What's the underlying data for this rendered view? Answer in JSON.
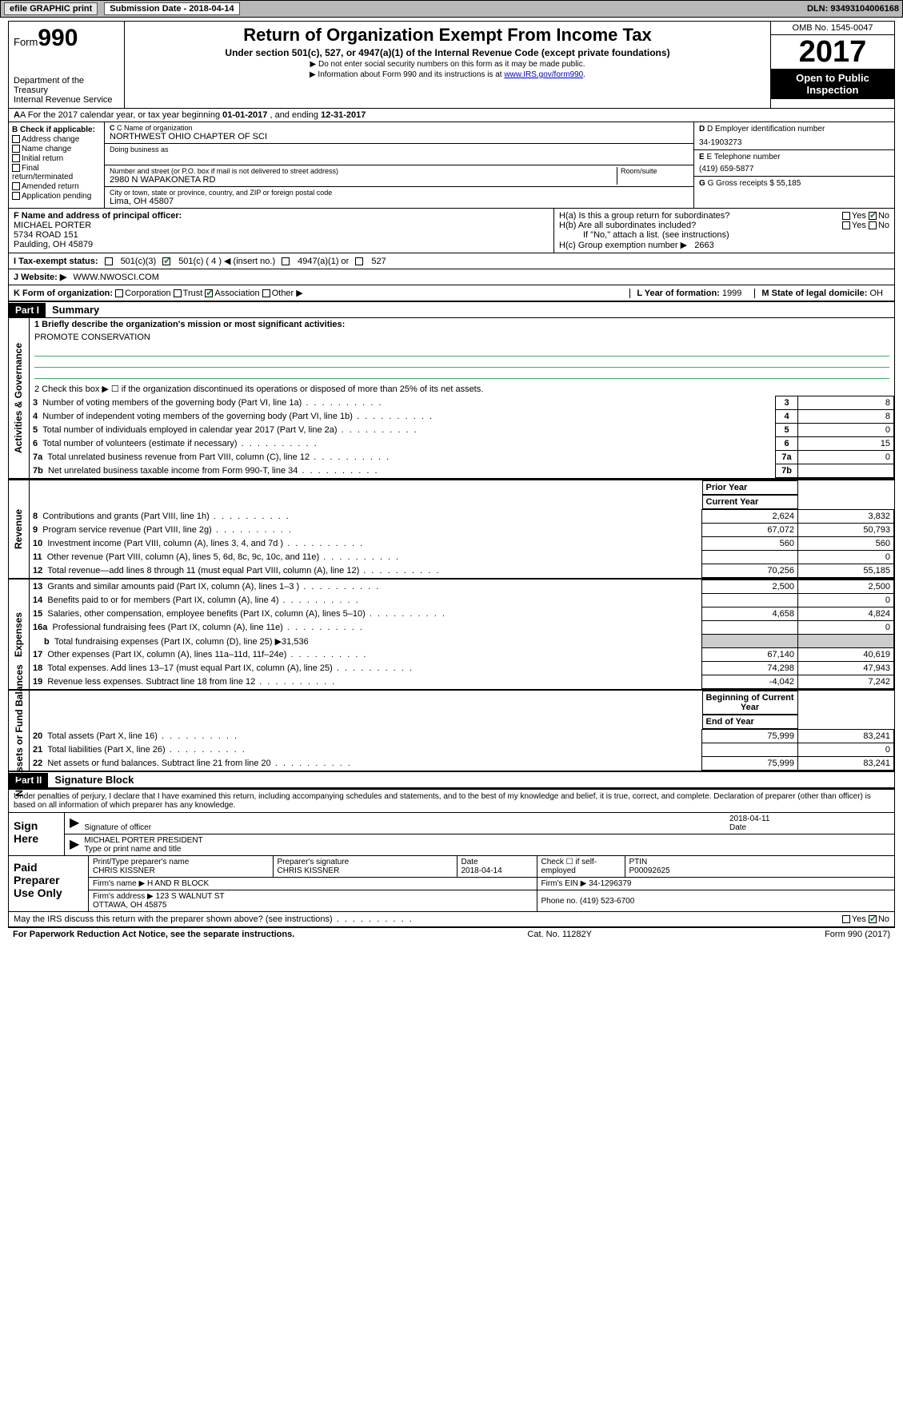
{
  "topbar": {
    "efile": "efile GRAPHIC print",
    "submission": "Submission Date - 2018-04-14",
    "dln": "DLN: 93493104006168"
  },
  "header": {
    "form_word": "Form",
    "form_num": "990",
    "dept": "Department of the Treasury\nInternal Revenue Service",
    "title": "Return of Organization Exempt From Income Tax",
    "subtitle": "Under section 501(c), 527, or 4947(a)(1) of the Internal Revenue Code (except private foundations)",
    "note1": "▶ Do not enter social security numbers on this form as it may be made public.",
    "note2_pre": "▶ Information about Form 990 and its instructions is at ",
    "note2_link": "www.IRS.gov/form990",
    "omb": "OMB No. 1545-0047",
    "year": "2017",
    "otp": "Open to Public Inspection"
  },
  "lineA": {
    "text_pre": "A For the 2017 calendar year, or tax year beginning ",
    "begin": "01-01-2017",
    "mid": " , and ending ",
    "end": "12-31-2017"
  },
  "boxB": {
    "label": "B Check if applicable:",
    "items": [
      "Address change",
      "Name change",
      "Initial return",
      "Final return/terminated",
      "Amended return",
      "Application pending"
    ]
  },
  "boxC": {
    "name_lbl": "C Name of organization",
    "name": "NORTHWEST OHIO CHAPTER OF SCI",
    "dba_lbl": "Doing business as",
    "street_lbl": "Number and street (or P.O. box if mail is not delivered to street address)",
    "room_lbl": "Room/suite",
    "street": "2980 N WAPAKONETA RD",
    "city_lbl": "City or town, state or province, country, and ZIP or foreign postal code",
    "city": "Lima, OH  45807"
  },
  "boxD": {
    "lbl": "D Employer identification number",
    "val": "34-1903273"
  },
  "boxE": {
    "lbl": "E Telephone number",
    "val": "(419) 659-5877"
  },
  "boxG": {
    "lbl": "G Gross receipts $",
    "val": "55,185"
  },
  "boxF": {
    "lbl": "F  Name and address of principal officer:",
    "name": "MICHAEL PORTER",
    "addr1": "5734 ROAD 151",
    "addr2": "Paulding, OH  45879"
  },
  "boxH": {
    "a": "H(a)  Is this a group return for subordinates?",
    "b": "H(b)  Are all subordinates included?",
    "b_note": "If \"No,\" attach a list. (see instructions)",
    "c": "H(c)  Group exemption number ▶",
    "c_val": "2663"
  },
  "lineI": {
    "lbl": "I    Tax-exempt status:",
    "opts": [
      "501(c)(3)",
      "501(c) ( 4 ) ◀ (insert no.)",
      "4947(a)(1) or",
      "527"
    ]
  },
  "lineJ": {
    "lbl": "J    Website: ▶",
    "val": "WWW.NWOSCI.COM"
  },
  "lineK": {
    "lbl": "K Form of organization:",
    "opts": [
      "Corporation",
      "Trust",
      "Association",
      "Other ▶"
    ]
  },
  "lineL": {
    "lbl": "L Year of formation:",
    "val": "1999"
  },
  "lineM": {
    "lbl": "M State of legal domicile:",
    "val": "OH"
  },
  "partI": {
    "tag": "Part I",
    "title": "Summary"
  },
  "gov": {
    "vlabel": "Activities & Governance",
    "l1": "1   Briefly describe the organization's mission or most significant activities:",
    "mission": "PROMOTE CONSERVATION",
    "l2": "2   Check this box ▶ ☐  if the organization discontinued its operations or disposed of more than 25% of its net assets.",
    "rows": [
      {
        "n": "3",
        "d": "Number of voting members of the governing body (Part VI, line 1a)",
        "v": "8"
      },
      {
        "n": "4",
        "d": "Number of independent voting members of the governing body (Part VI, line 1b)",
        "v": "8"
      },
      {
        "n": "5",
        "d": "Total number of individuals employed in calendar year 2017 (Part V, line 2a)",
        "v": "0"
      },
      {
        "n": "6",
        "d": "Total number of volunteers (estimate if necessary)",
        "v": "15"
      },
      {
        "n": "7a",
        "d": "Total unrelated business revenue from Part VIII, column (C), line 12",
        "v": "0"
      },
      {
        "n": "7b",
        "d": "Net unrelated business taxable income from Form 990-T, line 34",
        "v": ""
      }
    ]
  },
  "rev": {
    "vlabel": "Revenue",
    "h1": "Prior Year",
    "h2": "Current Year",
    "rows": [
      {
        "n": "8",
        "d": "Contributions and grants (Part VIII, line 1h)",
        "p": "2,624",
        "c": "3,832"
      },
      {
        "n": "9",
        "d": "Program service revenue (Part VIII, line 2g)",
        "p": "67,072",
        "c": "50,793"
      },
      {
        "n": "10",
        "d": "Investment income (Part VIII, column (A), lines 3, 4, and 7d )",
        "p": "560",
        "c": "560"
      },
      {
        "n": "11",
        "d": "Other revenue (Part VIII, column (A), lines 5, 6d, 8c, 9c, 10c, and 11e)",
        "p": "",
        "c": "0"
      },
      {
        "n": "12",
        "d": "Total revenue—add lines 8 through 11 (must equal Part VIII, column (A), line 12)",
        "p": "70,256",
        "c": "55,185"
      }
    ]
  },
  "exp": {
    "vlabel": "Expenses",
    "rows": [
      {
        "n": "13",
        "d": "Grants and similar amounts paid (Part IX, column (A), lines 1–3 )",
        "p": "2,500",
        "c": "2,500"
      },
      {
        "n": "14",
        "d": "Benefits paid to or for members (Part IX, column (A), line 4)",
        "p": "",
        "c": "0"
      },
      {
        "n": "15",
        "d": "Salaries, other compensation, employee benefits (Part IX, column (A), lines 5–10)",
        "p": "4,658",
        "c": "4,824"
      },
      {
        "n": "16a",
        "d": "Professional fundraising fees (Part IX, column (A), line 11e)",
        "p": "",
        "c": "0"
      },
      {
        "n": "b",
        "d": "Total fundraising expenses (Part IX, column (D), line 25) ▶31,536",
        "p": "–",
        "c": "–"
      },
      {
        "n": "17",
        "d": "Other expenses (Part IX, column (A), lines 11a–11d, 11f–24e)",
        "p": "67,140",
        "c": "40,619"
      },
      {
        "n": "18",
        "d": "Total expenses. Add lines 13–17 (must equal Part IX, column (A), line 25)",
        "p": "74,298",
        "c": "47,943"
      },
      {
        "n": "19",
        "d": "Revenue less expenses. Subtract line 18 from line 12",
        "p": "-4,042",
        "c": "7,242"
      }
    ]
  },
  "net": {
    "vlabel": "Net Assets or Fund Balances",
    "h1": "Beginning of Current Year",
    "h2": "End of Year",
    "rows": [
      {
        "n": "20",
        "d": "Total assets (Part X, line 16)",
        "p": "75,999",
        "c": "83,241"
      },
      {
        "n": "21",
        "d": "Total liabilities (Part X, line 26)",
        "p": "",
        "c": "0"
      },
      {
        "n": "22",
        "d": "Net assets or fund balances. Subtract line 21 from line 20",
        "p": "75,999",
        "c": "83,241"
      }
    ]
  },
  "partII": {
    "tag": "Part II",
    "title": "Signature Block"
  },
  "perjury": "Under penalties of perjury, I declare that I have examined this return, including accompanying schedules and statements, and to the best of my knowledge and belief, it is true, correct, and complete. Declaration of preparer (other than officer) is based on all information of which preparer has any knowledge.",
  "sign": {
    "here": "Sign Here",
    "sig_lbl": "Signature of officer",
    "date_lbl": "Date",
    "date": "2018-04-11",
    "name": "MICHAEL PORTER  PRESIDENT",
    "name_lbl": "Type or print name and title"
  },
  "paid": {
    "title": "Paid Preparer Use Only",
    "name_lbl": "Print/Type preparer's name",
    "name": "CHRIS KISSNER",
    "sig_lbl": "Preparer's signature",
    "sig": "CHRIS KISSNER",
    "pdate_lbl": "Date",
    "pdate": "2018-04-14",
    "self_lbl": "Check ☐ if self-employed",
    "ptin_lbl": "PTIN",
    "ptin": "P00092625",
    "firm_lbl": "Firm's name    ▶",
    "firm": "H AND R BLOCK",
    "ein_lbl": "Firm's EIN ▶",
    "ein": "34-1296379",
    "addr_lbl": "Firm's address ▶",
    "addr": "123 S WALNUT ST\nOTTAWA, OH  45875",
    "phone_lbl": "Phone no.",
    "phone": "(419) 523-6700"
  },
  "discuss": "May the IRS discuss this return with the preparer shown above? (see instructions)",
  "footer": {
    "l": "For Paperwork Reduction Act Notice, see the separate instructions.",
    "c": "Cat. No. 11282Y",
    "r": "Form 990 (2017)"
  },
  "yesno": {
    "yes": "Yes",
    "no": "No"
  }
}
